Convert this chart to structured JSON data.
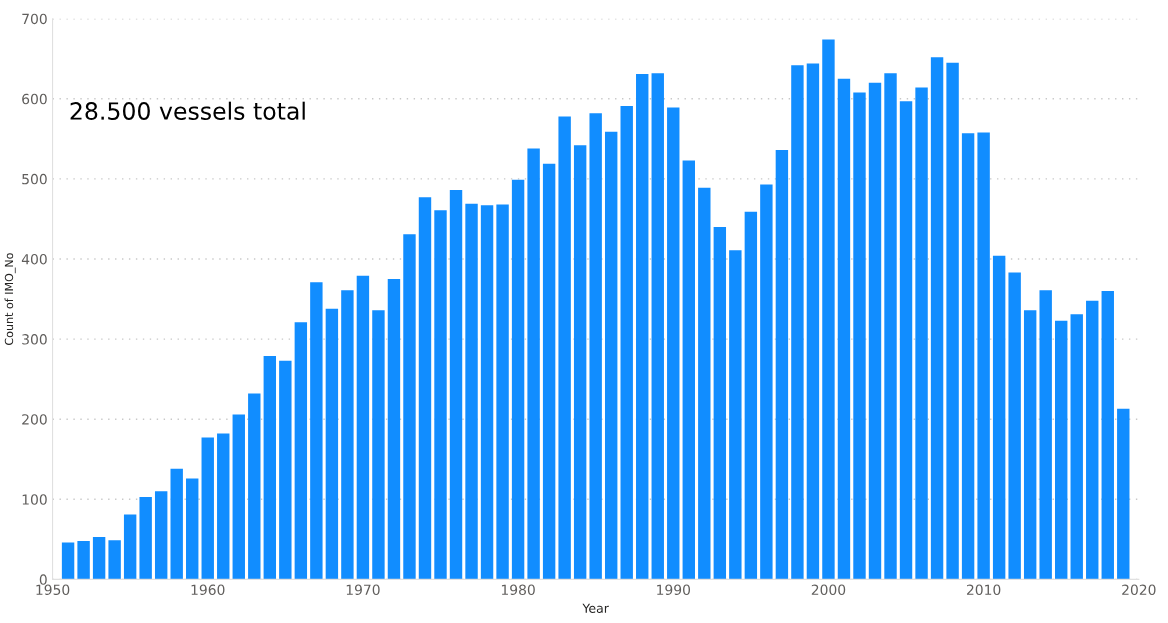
{
  "chart_data": {
    "type": "bar",
    "x": [
      1951,
      1952,
      1953,
      1954,
      1955,
      1956,
      1957,
      1958,
      1959,
      1960,
      1961,
      1962,
      1963,
      1964,
      1965,
      1966,
      1967,
      1968,
      1969,
      1970,
      1971,
      1972,
      1973,
      1974,
      1975,
      1976,
      1977,
      1978,
      1979,
      1980,
      1981,
      1982,
      1983,
      1984,
      1985,
      1986,
      1987,
      1988,
      1989,
      1990,
      1991,
      1992,
      1993,
      1994,
      1995,
      1996,
      1997,
      1998,
      1999,
      2000,
      2001,
      2002,
      2003,
      2004,
      2005,
      2006,
      2007,
      2008,
      2009,
      2010,
      2011,
      2012,
      2013,
      2014,
      2015,
      2016,
      2017,
      2018,
      2019
    ],
    "values": [
      46,
      48,
      53,
      49,
      81,
      103,
      110,
      138,
      126,
      177,
      182,
      206,
      232,
      279,
      273,
      321,
      371,
      338,
      361,
      379,
      336,
      375,
      431,
      477,
      461,
      486,
      469,
      467,
      468,
      499,
      538,
      519,
      578,
      542,
      582,
      559,
      591,
      631,
      632,
      589,
      523,
      489,
      440,
      411,
      459,
      493,
      536,
      642,
      644,
      674,
      625,
      608,
      620,
      632,
      597,
      614,
      652,
      645,
      557,
      558,
      404,
      383,
      336,
      361,
      323,
      331,
      348,
      360,
      213
    ],
    "color": "#118dff",
    "xlabel": "Year",
    "ylabel": "Count of IMO_No",
    "xlim": [
      1950,
      2020
    ],
    "xticks": [
      1950,
      1960,
      1970,
      1980,
      1990,
      2000,
      2010,
      2020
    ],
    "ylim": [
      0,
      700
    ],
    "yticks": [
      0,
      100,
      200,
      300,
      400,
      500,
      600,
      700
    ],
    "grid": "y",
    "annotations": [
      "28.500 vessels total"
    ]
  }
}
